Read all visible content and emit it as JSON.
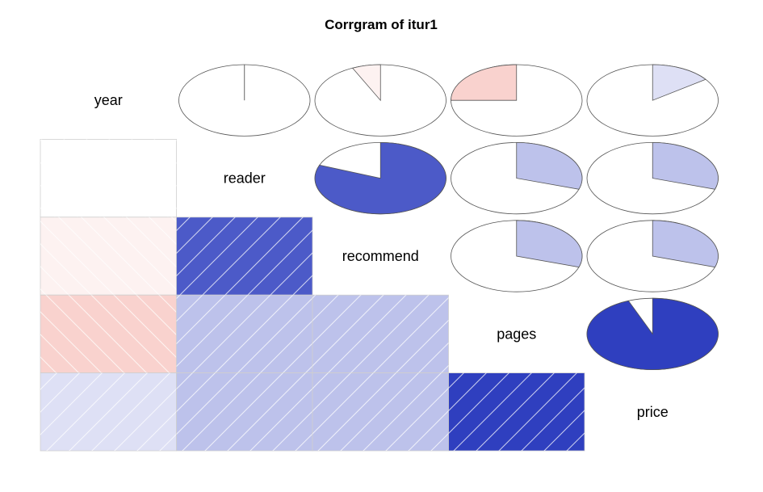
{
  "chart_data": {
    "type": "heatmap",
    "title": "Corrgram of itur1",
    "variables": [
      "year",
      "reader",
      "recommend",
      "pages",
      "price"
    ],
    "lower_panel": "shade",
    "upper_panel": "pie",
    "colors": {
      "positive": "#2233BB",
      "negative": "#E74C3C",
      "neutral": "#FFFFFF",
      "outline": "#555555",
      "hatch": "#FFFFFF"
    },
    "correlations": [
      [
        1.0,
        0.0,
        -0.07,
        -0.25,
        0.15
      ],
      [
        0.0,
        1.0,
        0.81,
        0.3,
        0.3
      ],
      [
        -0.07,
        0.81,
        1.0,
        0.3,
        0.3
      ],
      [
        -0.25,
        0.3,
        0.3,
        1.0,
        0.94
      ],
      [
        0.15,
        0.3,
        0.3,
        0.94,
        1.0
      ]
    ]
  }
}
